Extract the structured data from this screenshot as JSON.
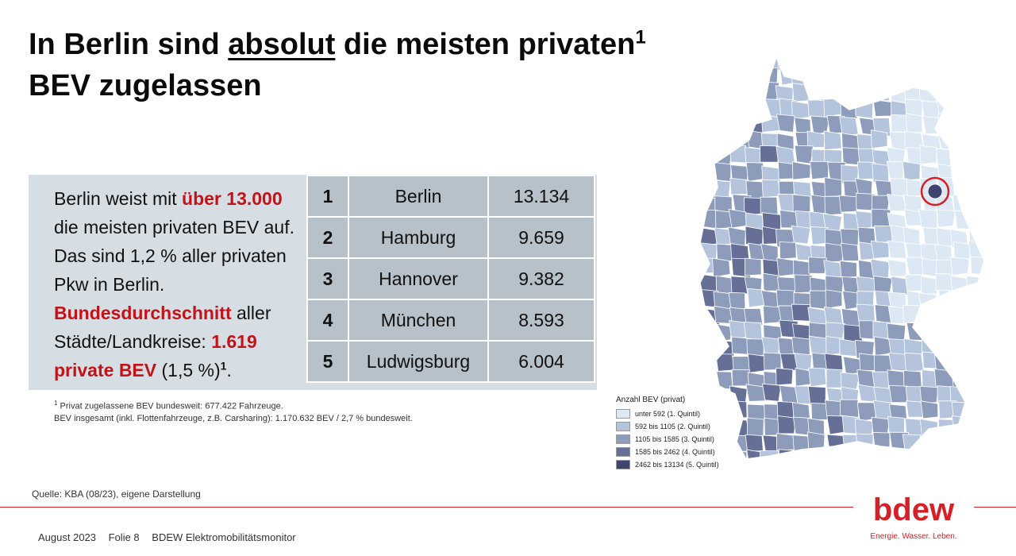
{
  "title": {
    "part1": "In Berlin sind ",
    "underlined": "absolut",
    "part2": " die meisten privaten",
    "sup": "1",
    "line2": "BEV zugelassen"
  },
  "summary": {
    "t1": "Berlin weist mit ",
    "h1": "über 13.000",
    "t2": " die meisten privaten BEV auf. Das sind 1,2 % aller privaten Pkw in Berlin. ",
    "h2": "Bundesdurchschnitt",
    "t3": " aller Städte/Landkreise: ",
    "h3": "1.619 private BEV",
    "t4": " (1,5 %)",
    "sup": "1",
    "t5": "."
  },
  "ranking": [
    {
      "rank": "1",
      "name": "Berlin",
      "value": "13.134"
    },
    {
      "rank": "2",
      "name": "Hamburg",
      "value": "9.659"
    },
    {
      "rank": "3",
      "name": "Hannover",
      "value": "9.382"
    },
    {
      "rank": "4",
      "name": "München",
      "value": "8.593"
    },
    {
      "rank": "5",
      "name": "Ludwigsburg",
      "value": "6.004"
    }
  ],
  "footnote": {
    "sup": "1",
    "line1": " Privat zugelassene BEV bundesweit: 677.422 Fahrzeuge.",
    "line2": "BEV insgesamt (inkl. Flottenfahrzeuge, z.B. Carsharing): 1.170.632 BEV / 2,7 % bundesweit."
  },
  "source": "Quelle: KBA (08/23), eigene Darstellung",
  "footer": {
    "date": "August 2023",
    "slide": "Folie 8",
    "report": "BDEW Elektromobilitätsmonitor"
  },
  "brand": {
    "logo": "bdew",
    "claim": "Energie. Wasser. Leben.",
    "color": "#d61f26"
  },
  "legend": {
    "title": "Anzahl BEV (privat)",
    "items": [
      {
        "label": "unter 592 (1. Quintil)",
        "color": "#dce9f5"
      },
      {
        "label": "592 bis 1105 (2. Quintil)",
        "color": "#b4c4dc"
      },
      {
        "label": "1105 bis 1585 (3. Quintil)",
        "color": "#8e9cbc"
      },
      {
        "label": "1585 bis 2462 (4. Quintil)",
        "color": "#666f96"
      },
      {
        "label": "2462 bis 13134 (5. Quintil)",
        "color": "#3f4470"
      }
    ]
  },
  "map": {
    "highlight": "Berlin",
    "highlight_color": "#d61f26"
  }
}
